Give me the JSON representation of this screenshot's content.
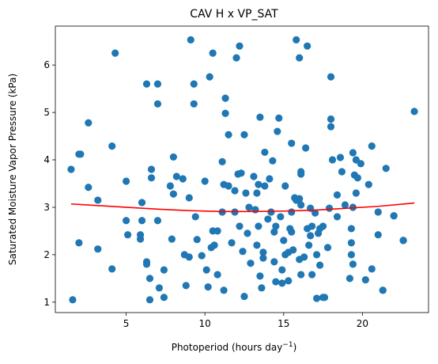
{
  "chart_data": {
    "type": "scatter",
    "title": "CAV H x VP_SAT",
    "xlabel": "Photoperiod (hours day",
    "xlabel_sup": "−1",
    "xlabel_end": ")",
    "ylabel": "Saturated Moisture Vapor Pressure (kPa)",
    "xlim": [
      0.5,
      24.2
    ],
    "ylim": [
      0.78,
      6.82
    ],
    "xticks": [
      5,
      10,
      15,
      20
    ],
    "yticks": [
      1,
      2,
      3,
      4,
      5,
      6
    ],
    "grid": false,
    "colors": {
      "points": "#1f77b4",
      "fit_line": "#ff0000"
    },
    "fit_curve": {
      "x": [
        1.5,
        3.0,
        5.0,
        7.0,
        9.0,
        11.0,
        13.0,
        15.0,
        17.0,
        19.0,
        21.0,
        23.3
      ],
      "y": [
        3.07,
        3.04,
        3.0,
        2.96,
        2.93,
        2.91,
        2.91,
        2.92,
        2.94,
        2.98,
        3.02,
        3.09
      ]
    },
    "points": [
      [
        1.5,
        3.8
      ],
      [
        1.6,
        1.05
      ],
      [
        2.0,
        4.12
      ],
      [
        2.1,
        4.12
      ],
      [
        2.0,
        2.25
      ],
      [
        2.6,
        3.42
      ],
      [
        2.6,
        4.78
      ],
      [
        3.2,
        2.12
      ],
      [
        3.2,
        3.15
      ],
      [
        4.1,
        4.29
      ],
      [
        4.1,
        1.7
      ],
      [
        4.3,
        6.25
      ],
      [
        5.0,
        3.55
      ],
      [
        5.0,
        2.72
      ],
      [
        5.1,
        2.42
      ],
      [
        5.9,
        2.42
      ],
      [
        5.9,
        2.33
      ],
      [
        6.0,
        2.72
      ],
      [
        6.0,
        3.1
      ],
      [
        6.3,
        5.6
      ],
      [
        6.3,
        1.85
      ],
      [
        6.3,
        1.8
      ],
      [
        6.5,
        1.5
      ],
      [
        6.5,
        1.05
      ],
      [
        6.6,
        3.8
      ],
      [
        6.6,
        3.62
      ],
      [
        7.0,
        5.18
      ],
      [
        7.0,
        5.6
      ],
      [
        7.0,
        2.72
      ],
      [
        7.1,
        1.3
      ],
      [
        7.4,
        1.1
      ],
      [
        7.4,
        1.68
      ],
      [
        7.8,
        3.45
      ],
      [
        7.9,
        2.33
      ],
      [
        8.0,
        3.28
      ],
      [
        8.0,
        4.06
      ],
      [
        8.2,
        3.65
      ],
      [
        8.6,
        3.6
      ],
      [
        8.7,
        2.0
      ],
      [
        8.8,
        1.35
      ],
      [
        9.0,
        1.95
      ],
      [
        9.0,
        3.2
      ],
      [
        9.1,
        6.53
      ],
      [
        9.3,
        5.6
      ],
      [
        9.3,
        5.18
      ],
      [
        9.4,
        2.8
      ],
      [
        9.5,
        2.32
      ],
      [
        9.8,
        1.98
      ],
      [
        10.0,
        3.55
      ],
      [
        10.1,
        1.68
      ],
      [
        10.2,
        1.32
      ],
      [
        10.3,
        5.75
      ],
      [
        10.4,
        2.15
      ],
      [
        10.5,
        2.5
      ],
      [
        10.5,
        6.25
      ],
      [
        10.6,
        2.2
      ],
      [
        10.8,
        1.58
      ],
      [
        10.8,
        2.5
      ],
      [
        11.1,
        3.96
      ],
      [
        11.1,
        2.9
      ],
      [
        11.2,
        1.25
      ],
      [
        11.2,
        3.48
      ],
      [
        11.3,
        5.3
      ],
      [
        11.3,
        4.98
      ],
      [
        11.5,
        4.53
      ],
      [
        11.5,
        3.45
      ],
      [
        11.7,
        2.25
      ],
      [
        11.9,
        3.35
      ],
      [
        11.9,
        2.9
      ],
      [
        12.0,
        6.15
      ],
      [
        12.1,
        3.7
      ],
      [
        12.2,
        6.4
      ],
      [
        12.2,
        2.6
      ],
      [
        12.3,
        3.72
      ],
      [
        12.4,
        2.07
      ],
      [
        12.5,
        4.53
      ],
      [
        12.5,
        1.12
      ],
      [
        12.6,
        3.3
      ],
      [
        12.7,
        2.45
      ],
      [
        12.8,
        3.0
      ],
      [
        12.9,
        1.82
      ],
      [
        13.1,
        3.65
      ],
      [
        13.2,
        2.95
      ],
      [
        13.3,
        2.2
      ],
      [
        13.3,
        3.3
      ],
      [
        13.4,
        2.6
      ],
      [
        13.4,
        3.48
      ],
      [
        13.5,
        1.55
      ],
      [
        13.5,
        4.9
      ],
      [
        13.6,
        1.3
      ],
      [
        13.7,
        2.05
      ],
      [
        13.7,
        1.93
      ],
      [
        13.8,
        4.16
      ],
      [
        13.8,
        3.45
      ],
      [
        14.0,
        2.75
      ],
      [
        14.1,
        3.6
      ],
      [
        14.2,
        2.9
      ],
      [
        14.3,
        3.98
      ],
      [
        14.4,
        1.85
      ],
      [
        14.4,
        2.48
      ],
      [
        14.5,
        1.43
      ],
      [
        14.5,
        2.6
      ],
      [
        14.6,
        4.6
      ],
      [
        14.7,
        4.88
      ],
      [
        14.8,
        2.8
      ],
      [
        14.9,
        1.68
      ],
      [
        14.9,
        1.4
      ],
      [
        15.0,
        2.3
      ],
      [
        15.1,
        2.0
      ],
      [
        15.1,
        3.45
      ],
      [
        15.3,
        2.05
      ],
      [
        15.3,
        1.45
      ],
      [
        15.4,
        2.55
      ],
      [
        15.5,
        4.35
      ],
      [
        15.5,
        2.48
      ],
      [
        15.5,
        2.9
      ],
      [
        15.6,
        2.1
      ],
      [
        15.7,
        3.2
      ],
      [
        15.8,
        6.53
      ],
      [
        15.8,
        3.15
      ],
      [
        16.0,
        3.18
      ],
      [
        16.0,
        6.15
      ],
      [
        16.0,
        1.9
      ],
      [
        16.1,
        3.7
      ],
      [
        16.1,
        3.75
      ],
      [
        16.1,
        3.05
      ],
      [
        16.1,
        1.58
      ],
      [
        16.3,
        1.95
      ],
      [
        16.4,
        4.25
      ],
      [
        16.5,
        6.4
      ],
      [
        16.5,
        2.55
      ],
      [
        16.6,
        2.2
      ],
      [
        16.7,
        2.98
      ],
      [
        16.7,
        2.4
      ],
      [
        16.8,
        1.58
      ],
      [
        16.8,
        2.6
      ],
      [
        17.0,
        2.88
      ],
      [
        17.1,
        2.0
      ],
      [
        17.1,
        1.08
      ],
      [
        17.2,
        2.45
      ],
      [
        17.3,
        2.55
      ],
      [
        17.3,
        1.78
      ],
      [
        17.5,
        2.6
      ],
      [
        17.5,
        1.1
      ],
      [
        17.6,
        1.1
      ],
      [
        17.8,
        2.15
      ],
      [
        17.9,
        2.98
      ],
      [
        18.0,
        4.86
      ],
      [
        18.0,
        4.7
      ],
      [
        18.0,
        5.75
      ],
      [
        18.1,
        4.0
      ],
      [
        18.4,
        2.8
      ],
      [
        18.4,
        3.26
      ],
      [
        18.6,
        4.05
      ],
      [
        18.7,
        3.75
      ],
      [
        18.9,
        3.05
      ],
      [
        19.2,
        1.5
      ],
      [
        19.3,
        2.0
      ],
      [
        19.3,
        2.25
      ],
      [
        19.3,
        2.55
      ],
      [
        19.4,
        1.8
      ],
      [
        19.4,
        3.0
      ],
      [
        19.4,
        4.15
      ],
      [
        19.5,
        3.68
      ],
      [
        19.6,
        4.0
      ],
      [
        19.6,
        3.3
      ],
      [
        19.7,
        3.62
      ],
      [
        19.9,
        3.92
      ],
      [
        20.2,
        1.47
      ],
      [
        20.4,
        3.48
      ],
      [
        20.6,
        1.7
      ],
      [
        20.6,
        4.29
      ],
      [
        21.0,
        2.9
      ],
      [
        21.0,
        2.42
      ],
      [
        21.3,
        1.25
      ],
      [
        21.3,
        1.25
      ],
      [
        21.5,
        3.82
      ],
      [
        22.0,
        2.82
      ],
      [
        22.0,
        2.82
      ],
      [
        22.6,
        2.3
      ],
      [
        22.6,
        2.3
      ],
      [
        23.3,
        5.02
      ]
    ]
  }
}
